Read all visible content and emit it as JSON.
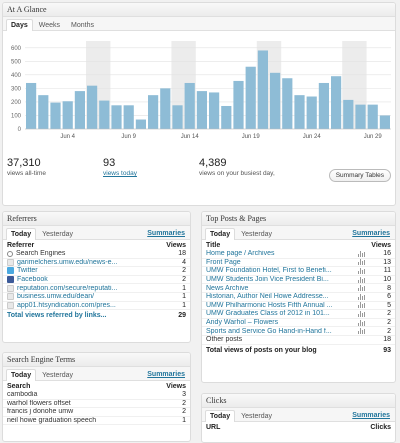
{
  "glance": {
    "title": "At A Glance",
    "tabs": [
      "Days",
      "Weeks",
      "Months"
    ],
    "stats": [
      {
        "value": "37,310",
        "label": "views all-time"
      },
      {
        "value": "93",
        "label": "views today"
      },
      {
        "value": "4,389",
        "label": "views on your busiest day,"
      }
    ],
    "button": "Summary Tables"
  },
  "chart_data": {
    "type": "bar",
    "categories": [
      "Jun 1",
      "Jun 2",
      "Jun 3",
      "Jun 4",
      "Jun 5",
      "Jun 6",
      "Jun 7",
      "Jun 8",
      "Jun 9",
      "Jun 10",
      "Jun 11",
      "Jun 12",
      "Jun 13",
      "Jun 14",
      "Jun 15",
      "Jun 16",
      "Jun 17",
      "Jun 18",
      "Jun 19",
      "Jun 20",
      "Jun 21",
      "Jun 22",
      "Jun 23",
      "Jun 24",
      "Jun 25",
      "Jun 26",
      "Jun 27",
      "Jun 28",
      "Jun 29",
      "Jun 30"
    ],
    "values": [
      340,
      250,
      195,
      205,
      280,
      320,
      210,
      175,
      175,
      70,
      250,
      300,
      175,
      340,
      280,
      270,
      170,
      355,
      460,
      580,
      415,
      375,
      250,
      240,
      340,
      390,
      215,
      180,
      180,
      100
    ],
    "tick_labels": [
      "Jun 4",
      "Jun 9",
      "Jun 14",
      "Jun 19",
      "Jun 24",
      "Jun 29"
    ],
    "y_ticks": [
      0,
      100,
      200,
      300,
      400,
      500,
      600
    ],
    "ylim": [
      0,
      650
    ],
    "weekend_bands": [
      [
        5,
        7
      ],
      [
        12,
        14
      ],
      [
        19,
        21
      ],
      [
        26,
        28
      ]
    ],
    "bar_color": "#8ebcd6",
    "grid": true
  },
  "referrers": {
    "title": "Referrers",
    "tabs": [
      "Today",
      "Yesterday"
    ],
    "summaries": "Summaries",
    "headers": [
      "Referrer",
      "Views"
    ],
    "rows": [
      {
        "label": "Search Engines",
        "value": "18",
        "icon": "search-icon",
        "plain": true
      },
      {
        "label": "garimelchers.umw.edu/news-e...",
        "value": "4",
        "icon": "blank-icon"
      },
      {
        "label": "Twitter",
        "value": "2",
        "icon": "twitter-icon"
      },
      {
        "label": "Facebook",
        "value": "2",
        "icon": "facebook-icon"
      },
      {
        "label": "reputation.com/secure/reputati...",
        "value": "1",
        "icon": "blank-icon"
      },
      {
        "label": "business.umw.edu/dean/",
        "value": "1",
        "icon": "blank-icon"
      },
      {
        "label": "app01.htsyndication.com/pres...",
        "value": "1",
        "icon": "blank-icon"
      }
    ],
    "total_label": "Total views referred by links...",
    "total_value": "29"
  },
  "top_posts": {
    "title": "Top Posts & Pages",
    "tabs": [
      "Today",
      "Yesterday"
    ],
    "summaries": "Summaries",
    "headers": [
      "Title",
      "Views"
    ],
    "rows": [
      {
        "label": "Home page / Archives",
        "value": "16"
      },
      {
        "label": "Front Page",
        "value": "13"
      },
      {
        "label": "UMW Foundation Hotel, First to Benefi...",
        "value": "11"
      },
      {
        "label": "UMW Students Join Vice President Bi...",
        "value": "10"
      },
      {
        "label": "News Archive",
        "value": "8"
      },
      {
        "label": "Historian, Author Neil Howe Addresse...",
        "value": "6"
      },
      {
        "label": "UMW Philharmonic Hosts Fifth Annual ...",
        "value": "5"
      },
      {
        "label": "UMW Graduates Class of 2012 in 101...",
        "value": "2"
      },
      {
        "label": "Andy Warhol – Flowers",
        "value": "2"
      },
      {
        "label": "Sports and Service Go Hand-in-Hand f...",
        "value": "2"
      }
    ],
    "other_label": "Other posts",
    "other_value": "18",
    "total_label": "Total views of posts on your blog",
    "total_value": "93"
  },
  "search_terms": {
    "title": "Search Engine Terms",
    "tabs": [
      "Today",
      "Yesterday"
    ],
    "summaries": "Summaries",
    "headers": [
      "Search",
      "Views"
    ],
    "rows": [
      {
        "label": "cambodia",
        "value": "3"
      },
      {
        "label": "warhol flowers offset",
        "value": "2"
      },
      {
        "label": "francis j donohe umw",
        "value": "2"
      },
      {
        "label": "neil howe graduation speech",
        "value": "1"
      }
    ]
  },
  "clicks": {
    "title": "Clicks",
    "tabs": [
      "Today",
      "Yesterday"
    ],
    "summaries": "Summaries",
    "headers": [
      "URL",
      "Clicks"
    ]
  }
}
